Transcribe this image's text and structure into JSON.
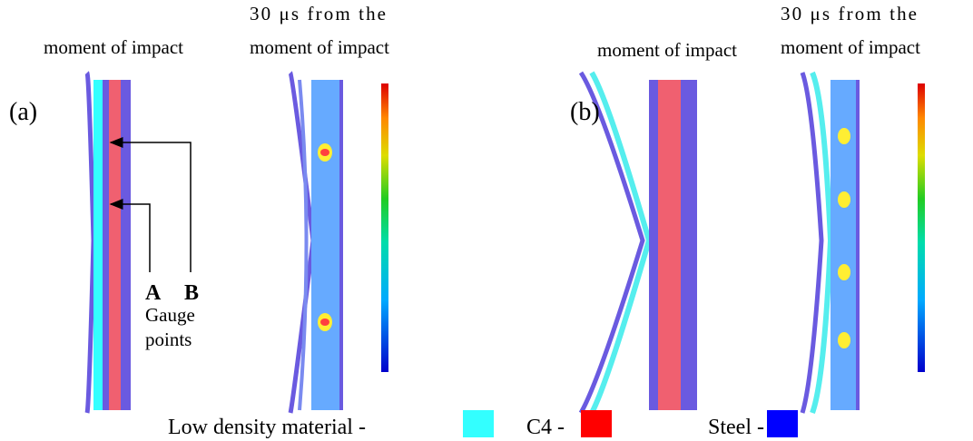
{
  "panels": [
    {
      "label": "(a)",
      "before_caption": "moment of impact",
      "after_caption_line1": "30 μs from the",
      "after_caption_line2": "moment of impact"
    },
    {
      "label": "(b)",
      "before_caption": "moment of impact",
      "after_caption_line1": "30 μs from the",
      "after_caption_line2": "moment of impact"
    }
  ],
  "gauges": {
    "point_a": "A",
    "point_b": "B",
    "caption_line1": "Gauge",
    "caption_line2": "points"
  },
  "legend": [
    {
      "label": "Low density material -",
      "color": "#33ffff"
    },
    {
      "label": "C4 -",
      "color": "#ff0000"
    },
    {
      "label": "Steel -",
      "color": "#0000ff"
    }
  ]
}
